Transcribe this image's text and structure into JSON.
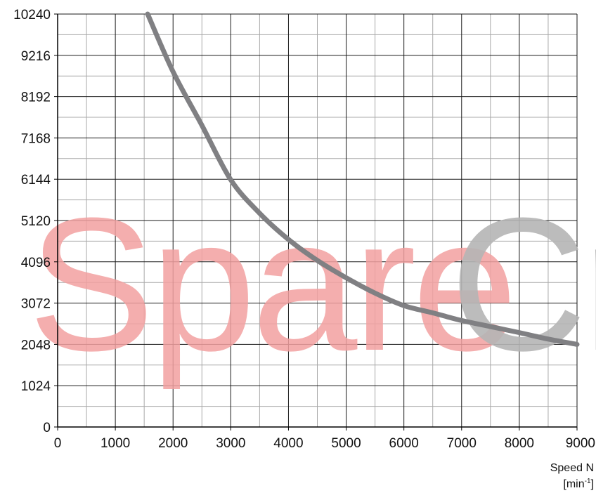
{
  "watermark": {
    "part1": "Spare",
    "part2": "Cr",
    "color1": "#f2a0a0",
    "color2": "#b5b5b5"
  },
  "chart_data": {
    "type": "line",
    "title": "",
    "xlabel": "Speed N",
    "xunit_base": "[min",
    "xunit_sup": "-1",
    "xunit_end": "]",
    "ylabel": "",
    "xlim": [
      0,
      9000
    ],
    "ylim": [
      0,
      10240
    ],
    "x_ticks": [
      0,
      1000,
      2000,
      3000,
      4000,
      5000,
      6000,
      7000,
      8000,
      9000
    ],
    "y_ticks": [
      0,
      1024,
      2048,
      3072,
      4096,
      5120,
      6144,
      7168,
      8192,
      9216,
      10240
    ],
    "grid": true,
    "line_color": "#808083",
    "series": [
      {
        "x": [
          1560,
          2000,
          2500,
          3000,
          3500,
          4000,
          4500,
          5000,
          5500,
          6000,
          6500,
          7000,
          7500,
          8000,
          8500,
          9000
        ],
        "values": [
          10240,
          8810,
          7480,
          6130,
          5300,
          4650,
          4130,
          3700,
          3320,
          3010,
          2830,
          2640,
          2490,
          2340,
          2180,
          2048
        ]
      }
    ]
  }
}
